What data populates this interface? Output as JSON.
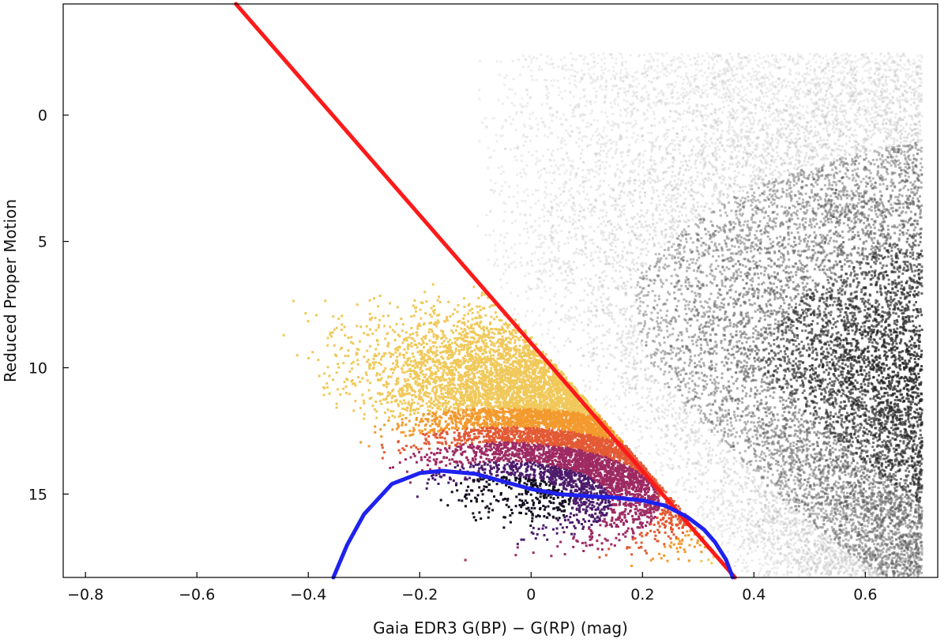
{
  "chart_data": {
    "type": "scatter",
    "title": "",
    "xlabel": "Gaia EDR3 G(BP) − G(RP) (mag)",
    "ylabel": "Reduced Proper Motion",
    "xlim": [
      -0.84,
      0.73
    ],
    "ylim": [
      18.3,
      -4.4
    ],
    "y_inverted": true,
    "grid": false,
    "x_ticks": [
      -0.8,
      -0.6,
      -0.4,
      -0.2,
      0,
      0.2,
      0.4,
      0.6
    ],
    "x_tick_labels": [
      "−0.8",
      "−0.6",
      "−0.4",
      "−0.2",
      "0",
      "0.2",
      "0.4",
      "0.6"
    ],
    "y_ticks": [
      0,
      5,
      10,
      15
    ],
    "y_tick_labels": [
      "0",
      "5",
      "10",
      "15"
    ],
    "density_colors": {
      "gray_field": [
        "#bdbdbd",
        "#5a5a5a",
        "#262626"
      ],
      "colored_region": [
        "#f0c95a",
        "#f39a2e",
        "#e35a34",
        "#9e2a63",
        "#4c1b6b",
        "#130c1f"
      ]
    },
    "series": [
      {
        "type": "line",
        "color": "#ff1a1a",
        "x": [
          -0.53,
          0.366
        ],
        "y": [
          -4.4,
          18.3
        ]
      },
      {
        "type": "line",
        "color": "#1f22ee",
        "x": [
          -0.355,
          -0.33,
          -0.3,
          -0.25,
          -0.2,
          -0.16,
          -0.1,
          -0.05,
          0.0,
          0.05,
          0.1,
          0.15,
          0.2,
          0.24,
          0.28,
          0.31,
          0.33,
          0.35,
          0.362
        ],
        "y": [
          18.3,
          17.0,
          15.8,
          14.6,
          14.17,
          14.08,
          14.2,
          14.5,
          14.8,
          15.0,
          15.08,
          15.14,
          15.25,
          15.45,
          15.9,
          16.4,
          16.9,
          17.6,
          18.3
        ]
      }
    ]
  }
}
